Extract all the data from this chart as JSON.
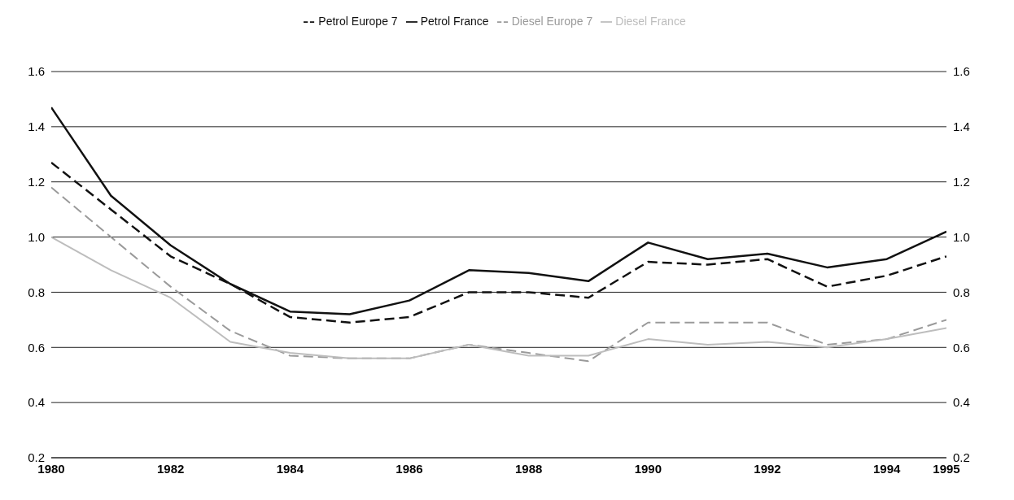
{
  "chart_data": {
    "type": "line",
    "x": [
      1980,
      1981,
      1982,
      1983,
      1984,
      1985,
      1986,
      1987,
      1988,
      1989,
      1990,
      1991,
      1992,
      1993,
      1994,
      1995
    ],
    "series": [
      {
        "name": "Petrol Europe 7",
        "color": "#111111",
        "line_style": "dashed",
        "values": [
          1.27,
          1.1,
          0.93,
          0.83,
          0.71,
          0.69,
          0.71,
          0.8,
          0.8,
          0.78,
          0.91,
          0.9,
          0.92,
          0.82,
          0.86,
          0.93
        ]
      },
      {
        "name": "Petrol France",
        "color": "#111111",
        "line_style": "solid",
        "values": [
          1.47,
          1.15,
          0.97,
          0.83,
          0.73,
          0.72,
          0.77,
          0.88,
          0.87,
          0.84,
          0.98,
          0.92,
          0.94,
          0.89,
          0.92,
          1.02
        ]
      },
      {
        "name": "Diesel Europe 7",
        "color": "#9a9a9a",
        "line_style": "dashed",
        "values": [
          1.18,
          1.0,
          0.82,
          0.66,
          0.57,
          0.56,
          0.56,
          0.61,
          0.58,
          0.55,
          0.69,
          0.69,
          0.69,
          0.61,
          0.63,
          0.7
        ]
      },
      {
        "name": "Diesel France",
        "color": "#bdbdbd",
        "line_style": "solid",
        "values": [
          1.0,
          0.88,
          0.78,
          0.62,
          0.58,
          0.56,
          0.56,
          0.61,
          0.57,
          0.57,
          0.63,
          0.61,
          0.62,
          0.6,
          0.63,
          0.67
        ]
      }
    ],
    "xlim": [
      1980,
      1995
    ],
    "xticks": [
      1980,
      1982,
      1984,
      1986,
      1988,
      1990,
      1992,
      1994,
      1995
    ],
    "ylim": [
      0.2,
      1.6
    ],
    "yticks": [
      0.2,
      0.4,
      0.6,
      0.8,
      {
        "value": 1,
        "label": "1.0"
      },
      1.2,
      1.4,
      1.6
    ],
    "y2lim": [
      0.2,
      1.6
    ],
    "y2ticks": [
      0.2,
      0.4,
      0.6,
      0.8,
      {
        "value": 1,
        "label": "1.0"
      },
      1.2,
      1.4,
      1.6
    ],
    "grid": "y",
    "legend": "top",
    "marker": "none"
  }
}
